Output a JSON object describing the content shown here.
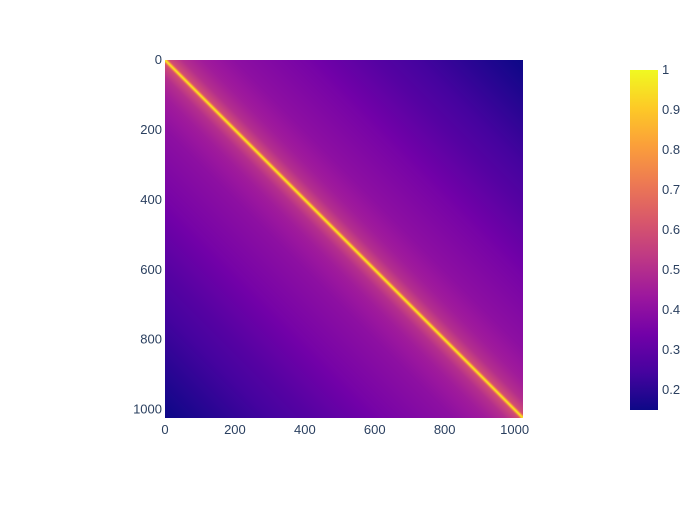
{
  "chart_data": {
    "type": "heatmap",
    "title": "",
    "xlabel": "",
    "ylabel": "",
    "x_range": [
      0,
      1023
    ],
    "y_range": [
      0,
      1023
    ],
    "y_reversed": true,
    "x_ticks": [
      0,
      200,
      400,
      600,
      800,
      1000
    ],
    "y_ticks": [
      0,
      200,
      400,
      600,
      800,
      1000
    ],
    "z_range": [
      0.15,
      1
    ],
    "value_pattern": "symmetric matrix; value 1 on the diagonal, decaying with |row - column| to about 0.15 at the far corners",
    "values_by_distance": {
      "distance": [
        0,
        10,
        50,
        100,
        200,
        400,
        600,
        800,
        1023
      ],
      "value": [
        1,
        0.6,
        0.5,
        0.45,
        0.4,
        0.35,
        0.28,
        0.22,
        0.15
      ]
    },
    "colorscale_name": "Plasma",
    "colorscale": [
      "#0d0887",
      "#46039f",
      "#7201a8",
      "#9c179e",
      "#bd3786",
      "#d8576b",
      "#ed7953",
      "#fb9f3a",
      "#fdca26",
      "#f0f921"
    ],
    "colorbar_ticks": [
      1,
      0.9,
      0.8,
      0.7,
      0.6,
      0.5,
      0.4,
      0.3,
      0.2
    ],
    "grid": false,
    "legend": "colorbar-right"
  }
}
